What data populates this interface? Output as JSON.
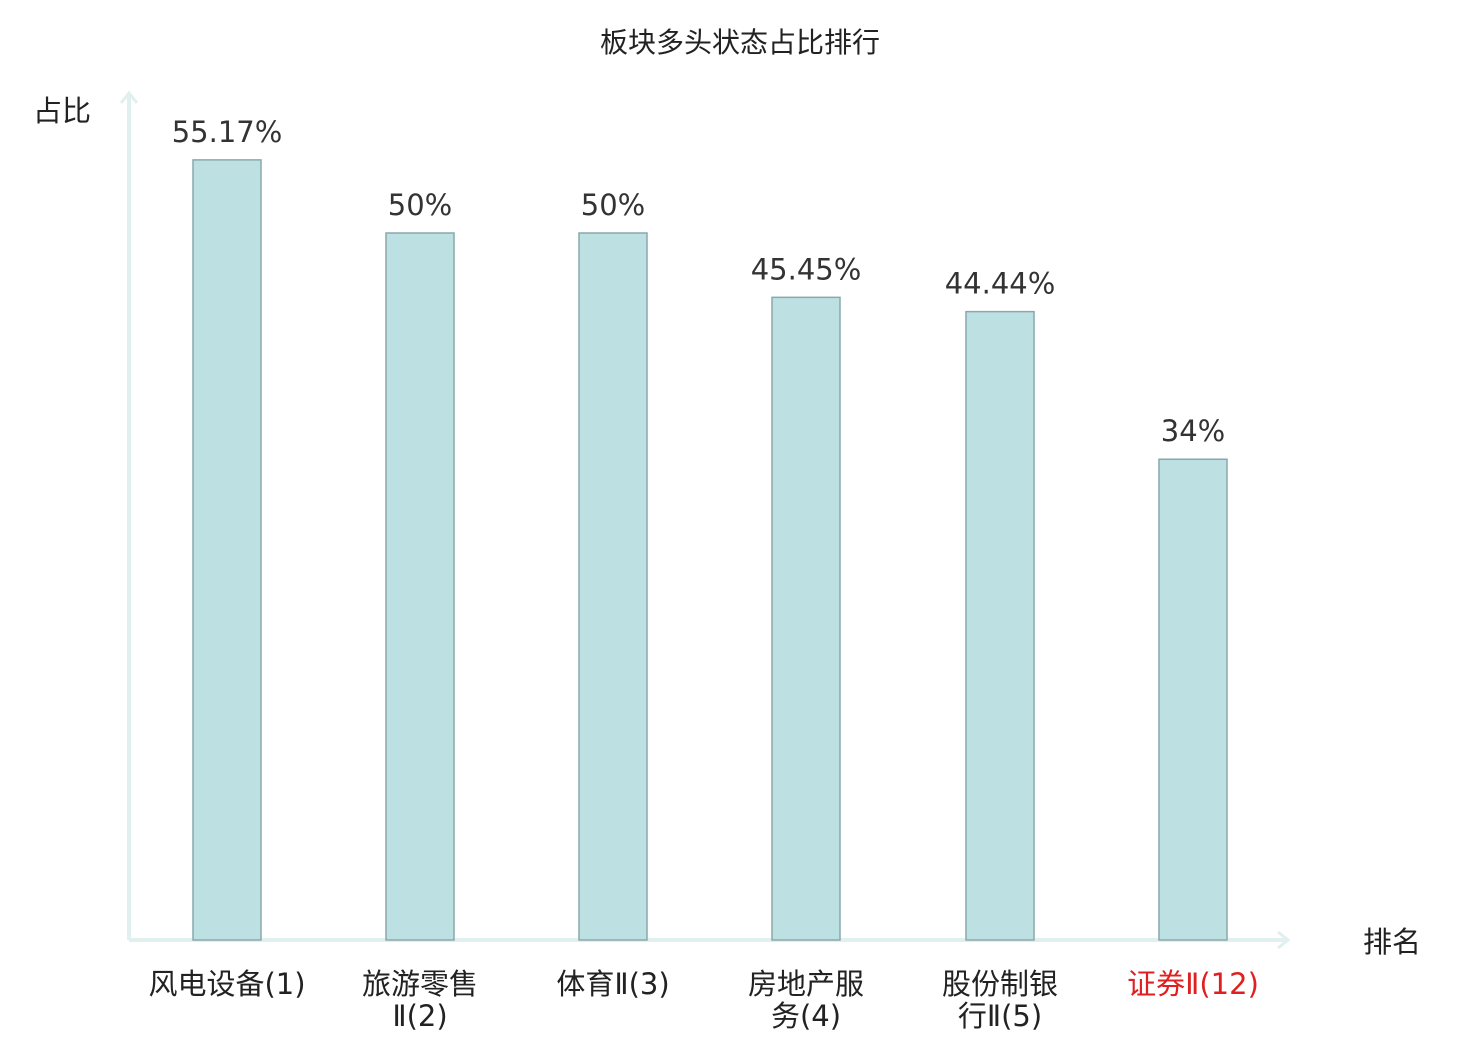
{
  "chart_data": {
    "type": "bar",
    "title": "板块多头状态占比排行",
    "ylabel": "占比",
    "xlabel": "排名",
    "categories": [
      [
        "风电设备(1)"
      ],
      [
        "旅游零售",
        "Ⅱ(2)"
      ],
      [
        "体育Ⅱ(3)"
      ],
      [
        "房地产服",
        "务(4)"
      ],
      [
        "股份制银",
        "行Ⅱ(5)"
      ],
      [
        "证券Ⅱ(12)"
      ]
    ],
    "values": [
      55.17,
      50,
      50,
      45.45,
      44.44,
      34
    ],
    "value_labels": [
      "55.17%",
      "50%",
      "50%",
      "45.45%",
      "44.44%",
      "34%"
    ],
    "highlight_index": 5,
    "ylim": [
      0,
      60
    ],
    "grid": false,
    "colors": {
      "bar_fill": "#bde0e3",
      "bar_stroke": "#8aa8ab",
      "axis": "#dff0ef",
      "highlight_text": "#e02020"
    }
  }
}
